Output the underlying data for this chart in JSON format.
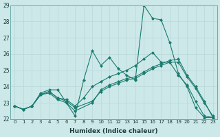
{
  "xlabel": "Humidex (Indice chaleur)",
  "background_color": "#cce8e8",
  "line_color": "#1a7a6e",
  "grid_color": "#b8d8d8",
  "xlim": [
    -0.5,
    23.5
  ],
  "ylim": [
    22,
    29
  ],
  "yticks": [
    22,
    23,
    24,
    25,
    26,
    27,
    28,
    29
  ],
  "xticks": [
    0,
    1,
    2,
    3,
    4,
    5,
    6,
    7,
    8,
    9,
    10,
    11,
    12,
    13,
    14,
    15,
    16,
    17,
    18,
    19,
    20,
    21,
    22,
    23
  ],
  "lines": [
    {
      "x": [
        0,
        1,
        2,
        3,
        4,
        5,
        6,
        7,
        8,
        9,
        10,
        11,
        12,
        13,
        14,
        15,
        16,
        17,
        18,
        19,
        20,
        21,
        22,
        23
      ],
      "y": [
        22.8,
        22.6,
        22.8,
        23.6,
        23.8,
        23.8,
        23.0,
        22.2,
        24.4,
        26.2,
        25.3,
        25.8,
        25.1,
        24.7,
        24.4,
        29.0,
        28.2,
        28.1,
        26.7,
        24.8,
        24.0,
        22.7,
        22.1,
        22.1
      ]
    },
    {
      "x": [
        0,
        1,
        2,
        3,
        4,
        5,
        6,
        7,
        8,
        9,
        10,
        11,
        12,
        13,
        14,
        15,
        16,
        17,
        18,
        19,
        20,
        21,
        22,
        23
      ],
      "y": [
        22.8,
        22.6,
        22.8,
        23.5,
        23.7,
        23.3,
        23.2,
        22.8,
        23.3,
        24.0,
        24.3,
        24.6,
        24.8,
        25.0,
        25.3,
        25.7,
        26.1,
        25.5,
        25.5,
        24.7,
        24.1,
        23.1,
        22.2,
        22.1
      ]
    },
    {
      "x": [
        0,
        1,
        2,
        3,
        4,
        5,
        6,
        7,
        9,
        10,
        11,
        12,
        13,
        14,
        15,
        16,
        17,
        18,
        19,
        20,
        21,
        22,
        23
      ],
      "y": [
        22.8,
        22.6,
        22.8,
        23.5,
        23.6,
        23.2,
        23.0,
        22.5,
        23.0,
        23.8,
        24.1,
        24.3,
        24.5,
        24.6,
        24.9,
        25.2,
        25.4,
        25.6,
        25.7,
        24.7,
        24.0,
        23.1,
        22.1
      ]
    },
    {
      "x": [
        0,
        1,
        2,
        3,
        4,
        5,
        6,
        7,
        9,
        10,
        11,
        12,
        13,
        14,
        15,
        16,
        17,
        18,
        19,
        20,
        21,
        22,
        23
      ],
      "y": [
        22.8,
        22.6,
        22.8,
        23.5,
        23.7,
        23.3,
        23.1,
        22.7,
        23.1,
        23.7,
        24.0,
        24.2,
        24.4,
        24.5,
        24.8,
        25.1,
        25.3,
        25.5,
        25.5,
        24.6,
        23.9,
        23.0,
        22.2
      ]
    }
  ]
}
